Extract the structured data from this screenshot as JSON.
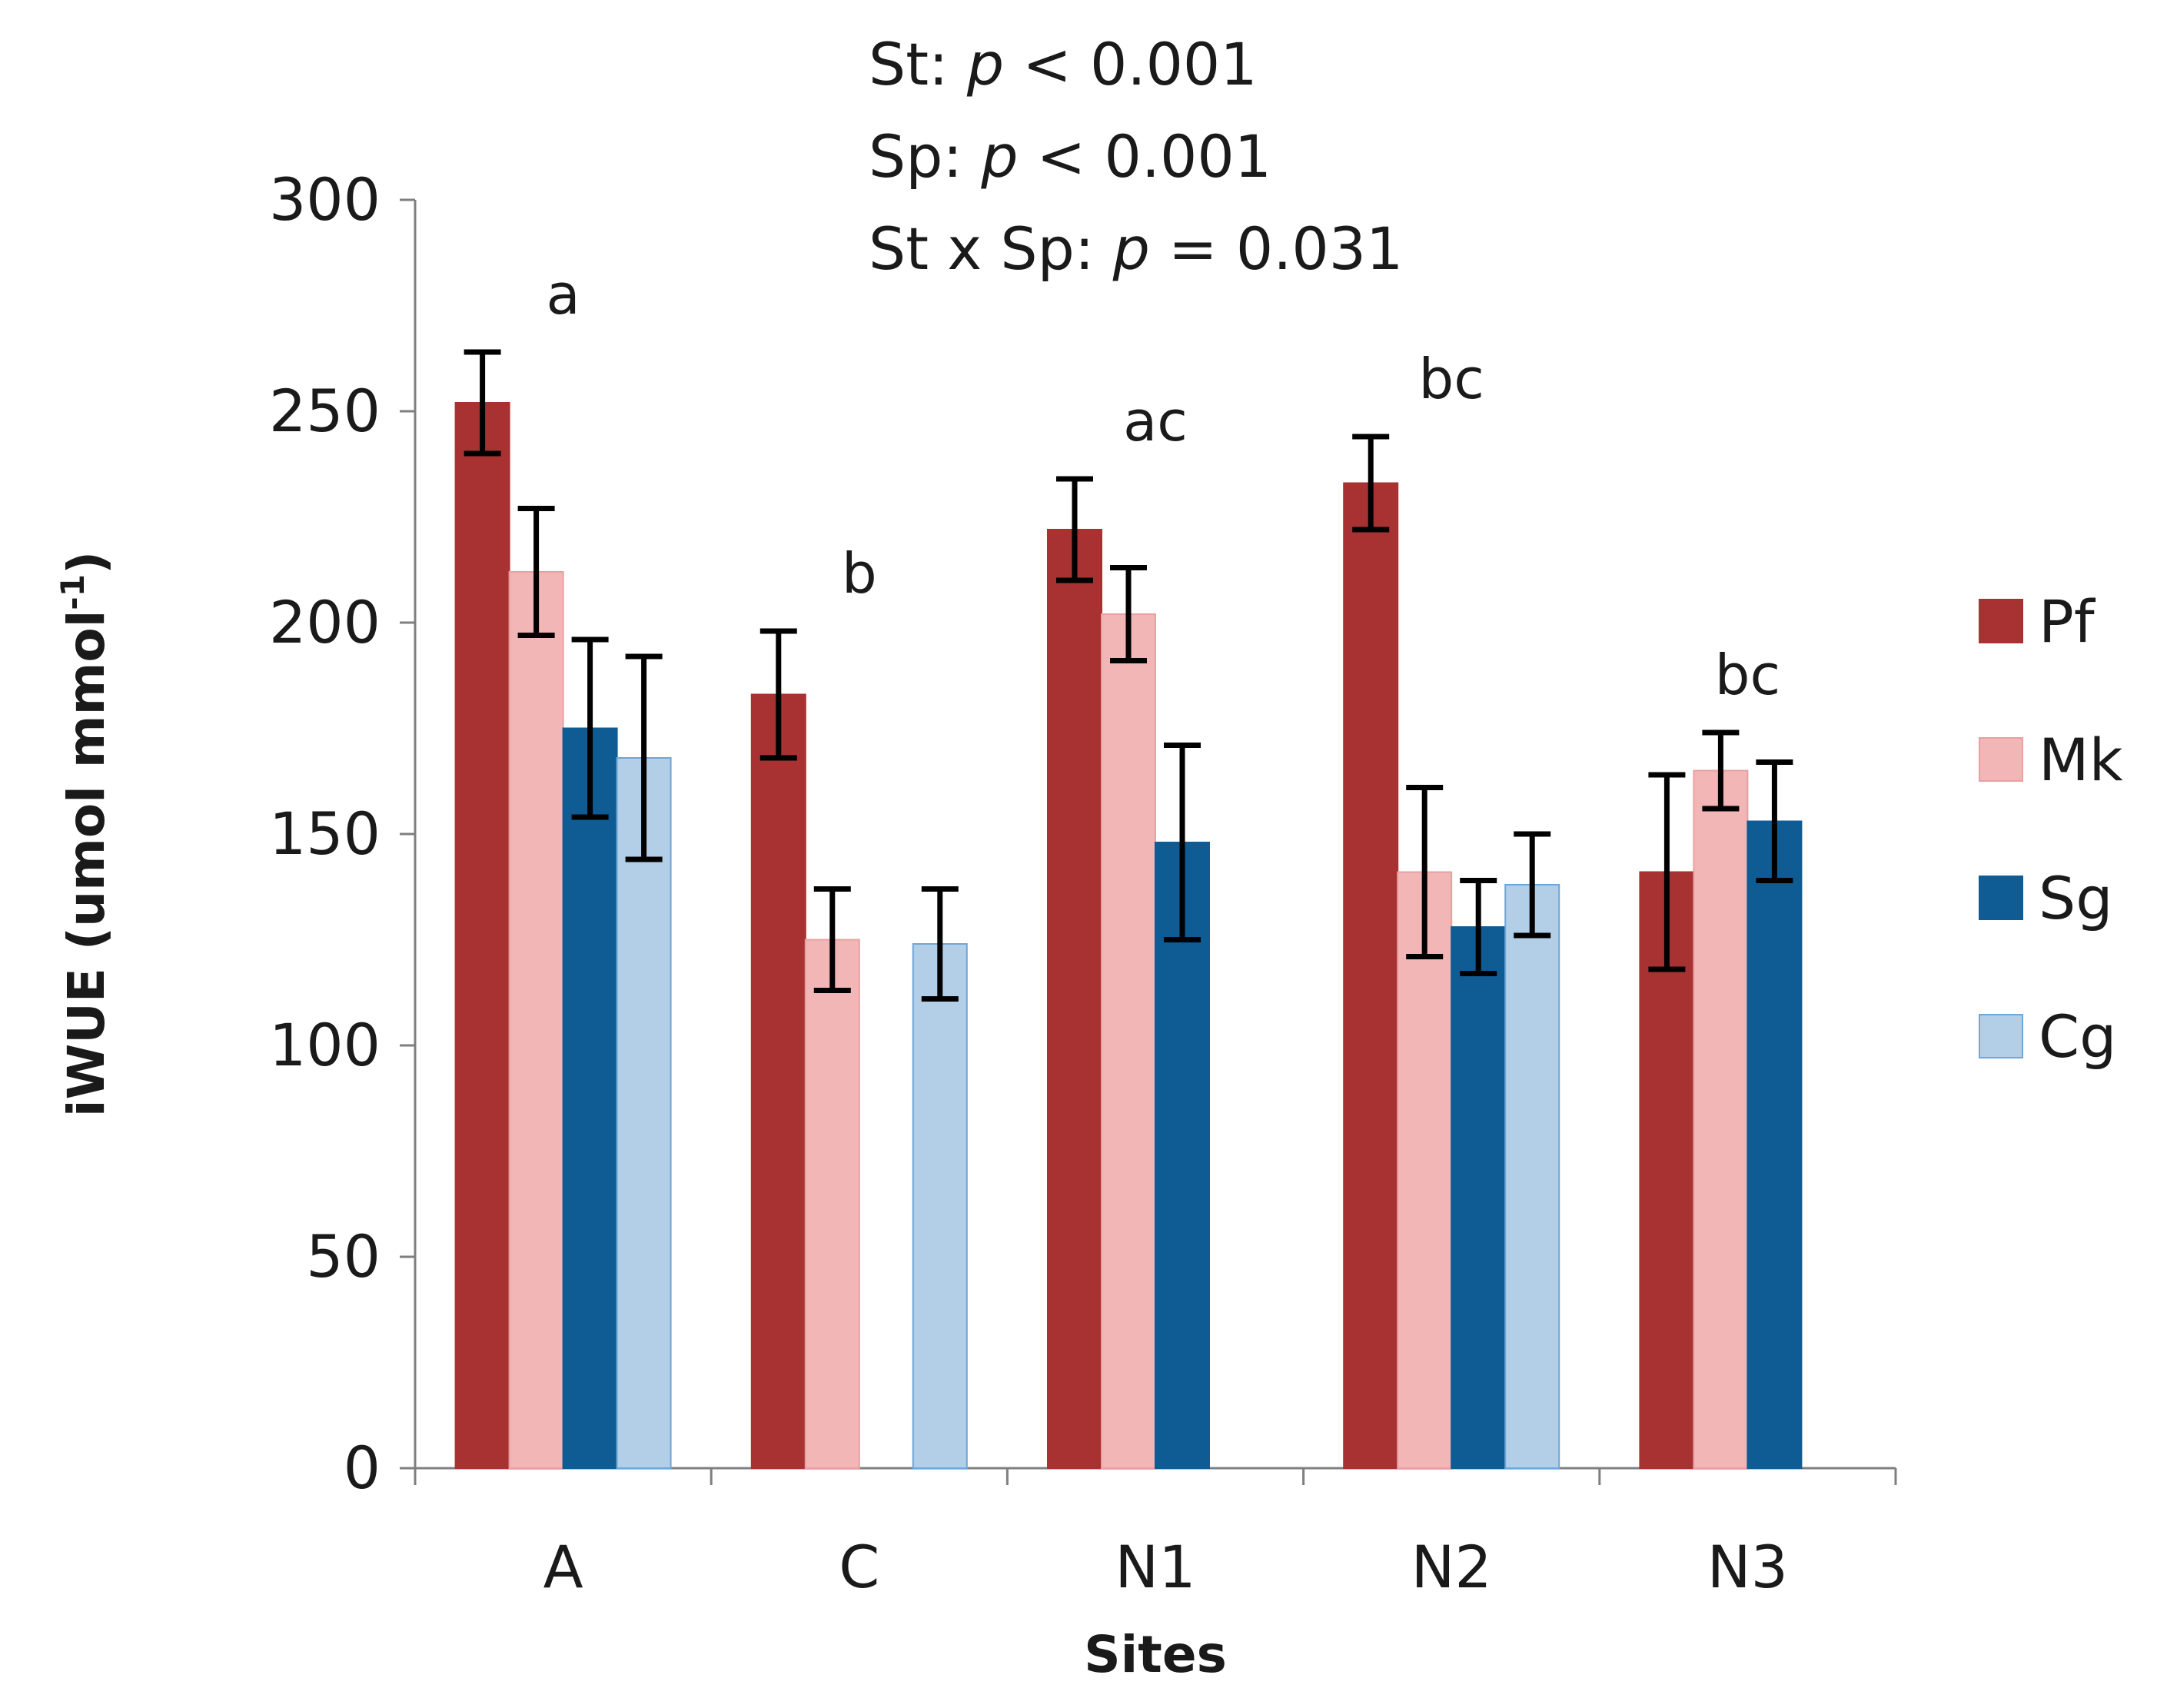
{
  "chart_data": {
    "type": "bar",
    "title": "",
    "xlabel": "Sites",
    "ylabel": "iWUE (umol mmol",
    "ylabel_sup": "-1",
    "ylabel_close": ")",
    "ylim": [
      0,
      300
    ],
    "yticks": [
      0,
      50,
      100,
      150,
      200,
      250,
      300
    ],
    "categories": [
      "A",
      "C",
      "N1",
      "N2",
      "N3"
    ],
    "series": [
      {
        "name": "Pf",
        "color": "#a83232",
        "values": [
          252,
          183,
          222,
          233,
          141
        ],
        "errors": [
          12,
          15,
          12,
          11,
          23
        ]
      },
      {
        "name": "Mk",
        "color": "#f2b6b6",
        "values": [
          212,
          125,
          202,
          141,
          165
        ],
        "errors": [
          15,
          12,
          11,
          20,
          9
        ]
      },
      {
        "name": "Sg",
        "color": "#0f5c94",
        "values": [
          175,
          null,
          148,
          128,
          153
        ],
        "errors": [
          21,
          null,
          23,
          11,
          14
        ]
      },
      {
        "name": "Cg",
        "color": "#b3cfe8",
        "values": [
          168,
          124,
          null,
          138,
          null
        ],
        "errors": [
          24,
          13,
          null,
          12,
          null
        ]
      }
    ],
    "significance_letters": [
      "a",
      "b",
      "ac",
      "bc",
      "bc"
    ],
    "stats": [
      {
        "prefix": "St: ",
        "p": "p",
        "rest": " < 0.001"
      },
      {
        "prefix": "Sp: ",
        "p": "p",
        "rest": " < 0.001"
      },
      {
        "prefix": "St x Sp: ",
        "p": "p",
        "rest": " = 0.031"
      }
    ],
    "legend_position": "right"
  }
}
